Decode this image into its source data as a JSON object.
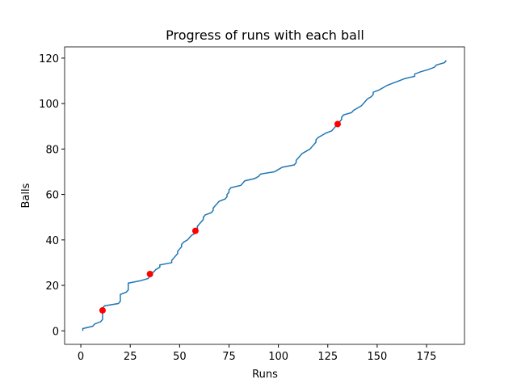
{
  "chart_data": {
    "type": "line",
    "title": "Progress of runs with each ball",
    "xlabel": "Runs",
    "ylabel": "Balls",
    "x": [
      1,
      1,
      6,
      7,
      10,
      11,
      11,
      11,
      11,
      11,
      11,
      12,
      19,
      20,
      20,
      20,
      20,
      23,
      24,
      24,
      24,
      24,
      30,
      34,
      35,
      35,
      37,
      38,
      40,
      40,
      46,
      46,
      47,
      48,
      49,
      49,
      50,
      51,
      51,
      52,
      54,
      55,
      56,
      58,
      58,
      59,
      59,
      60,
      61,
      62,
      62,
      63,
      66,
      67,
      67,
      68,
      69,
      70,
      73,
      74,
      74,
      75,
      75,
      76,
      81,
      82,
      83,
      88,
      90,
      91,
      98,
      100,
      102,
      108,
      109,
      109,
      110,
      111,
      112,
      114,
      116,
      117,
      118,
      119,
      119,
      120,
      122,
      124,
      127,
      128,
      129,
      130,
      131,
      132,
      132,
      133,
      137,
      138,
      140,
      142,
      143,
      144,
      145,
      147,
      148,
      148,
      151,
      153,
      155,
      158,
      161,
      164,
      169,
      169,
      172,
      176,
      179,
      180,
      184,
      185
    ],
    "values": [
      0,
      1,
      2,
      3,
      4,
      5,
      6,
      7,
      8,
      9,
      10,
      11,
      12,
      13,
      14,
      15,
      16,
      17,
      18,
      19,
      20,
      21,
      22,
      23,
      24,
      25,
      26,
      27,
      28,
      29,
      30,
      31,
      32,
      33,
      34,
      35,
      36,
      37,
      38,
      39,
      40,
      41,
      42,
      43,
      44,
      45,
      46,
      47,
      48,
      49,
      50,
      51,
      52,
      53,
      54,
      55,
      56,
      57,
      58,
      59,
      60,
      61,
      62,
      63,
      64,
      65,
      66,
      67,
      68,
      69,
      70,
      71,
      72,
      73,
      74,
      75,
      76,
      77,
      78,
      79,
      80,
      81,
      82,
      83,
      84,
      85,
      86,
      87,
      88,
      89,
      90,
      91,
      92,
      93,
      94,
      95,
      96,
      97,
      98,
      99,
      100,
      101,
      102,
      103,
      104,
      105,
      106,
      107,
      108,
      109,
      110,
      111,
      112,
      113,
      114,
      115,
      116,
      117,
      118,
      119
    ],
    "color": "#1f77b4",
    "points": {
      "x": [
        11,
        35,
        58,
        130
      ],
      "values": [
        9,
        25,
        44,
        91
      ],
      "color": "#ff0000"
    },
    "xlim": [
      -8.2,
      194.2
    ],
    "ylim": [
      -5.95,
      124.95
    ],
    "xticks": [
      0,
      25,
      50,
      75,
      100,
      125,
      150,
      175
    ],
    "yticks": [
      0,
      20,
      40,
      60,
      80,
      100,
      120
    ]
  }
}
